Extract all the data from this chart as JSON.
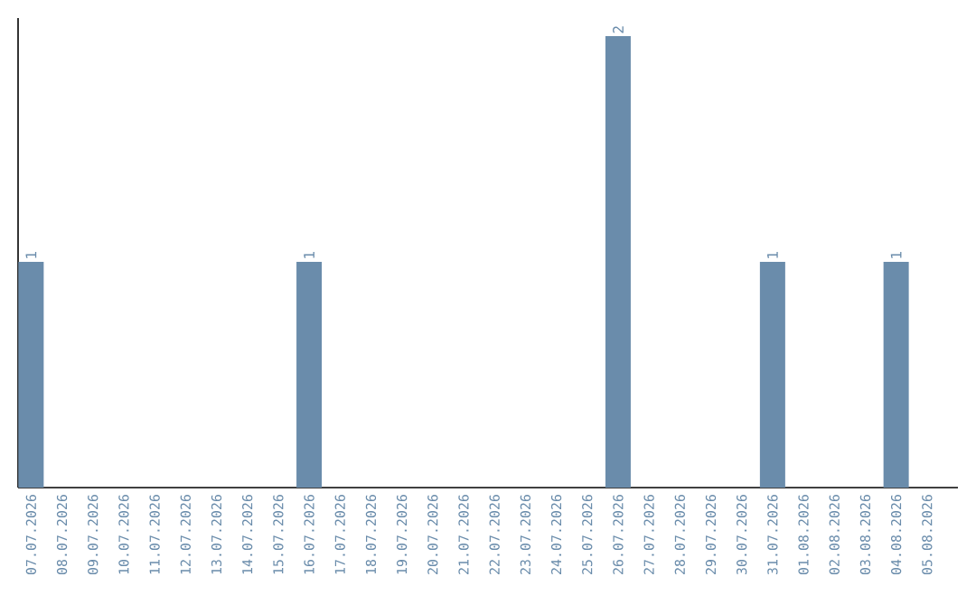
{
  "chart_data": {
    "type": "bar",
    "categories": [
      "07.07.2026",
      "08.07.2026",
      "09.07.2026",
      "10.07.2026",
      "11.07.2026",
      "12.07.2026",
      "13.07.2026",
      "14.07.2026",
      "15.07.2026",
      "16.07.2026",
      "17.07.2026",
      "18.07.2026",
      "19.07.2026",
      "20.07.2026",
      "21.07.2026",
      "22.07.2026",
      "23.07.2026",
      "24.07.2026",
      "25.07.2026",
      "26.07.2026",
      "27.07.2026",
      "28.07.2026",
      "29.07.2026",
      "30.07.2026",
      "31.07.2026",
      "01.08.2026",
      "02.08.2026",
      "03.08.2026",
      "04.08.2026",
      "05.08.2026"
    ],
    "values": [
      1,
      0,
      0,
      0,
      0,
      0,
      0,
      0,
      0,
      1,
      0,
      0,
      0,
      0,
      0,
      0,
      0,
      0,
      0,
      2,
      0,
      0,
      0,
      0,
      1,
      0,
      0,
      0,
      1,
      0
    ],
    "value_labels": [
      "1",
      null,
      null,
      null,
      null,
      null,
      null,
      null,
      null,
      "1",
      null,
      null,
      null,
      null,
      null,
      null,
      null,
      null,
      null,
      "2",
      null,
      null,
      null,
      null,
      "1",
      null,
      null,
      null,
      "1",
      null
    ],
    "color": "#6a8cab",
    "tick_labels": "x"
  }
}
